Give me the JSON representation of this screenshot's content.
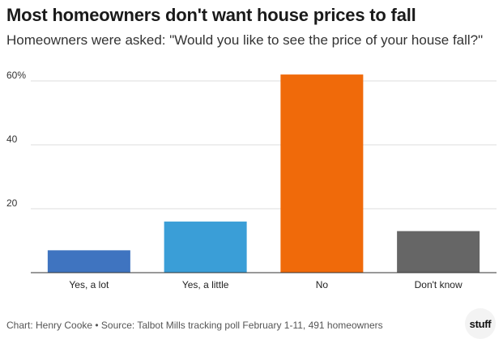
{
  "title": "Most homeowners don't want house prices to fall",
  "subtitle": "Homeowners were asked: \"Would you like to see the price of your house fall?\"",
  "footer": "Chart: Henry Cooke • Source: Talbot Mills tracking poll February 1-11, 491 homeowners",
  "logo_text": "stuff",
  "chart_data": {
    "type": "bar",
    "categories": [
      "Yes, a lot",
      "Yes, a little",
      "No",
      "Don't know"
    ],
    "values": [
      7,
      16,
      62,
      13
    ],
    "colors": [
      "#3f74c0",
      "#3a9ed7",
      "#f06a0a",
      "#666666"
    ],
    "yticks": [
      {
        "value": 20,
        "label": "20"
      },
      {
        "value": 40,
        "label": "40"
      },
      {
        "value": 60,
        "label": "60%"
      }
    ],
    "ylim": [
      0,
      64
    ],
    "grid": true,
    "legend": "none",
    "xlabel": "",
    "ylabel": ""
  }
}
